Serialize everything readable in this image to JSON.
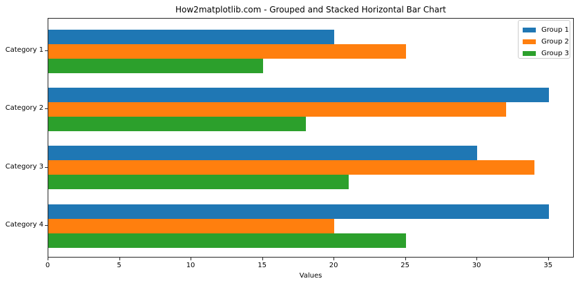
{
  "figure": {
    "background": "#ffffff"
  },
  "chart_data": {
    "type": "bar",
    "orientation": "horizontal",
    "title": "How2matplotlib.com - Grouped and Stacked Horizontal Bar Chart",
    "xlabel": "Values",
    "categories": [
      "Category 1",
      "Category 2",
      "Category 3",
      "Category 4"
    ],
    "series": [
      {
        "name": "Group 1",
        "color": "#1f77b4",
        "values": [
          20,
          35,
          30,
          35
        ]
      },
      {
        "name": "Group 2",
        "color": "#ff7f0e",
        "values": [
          25,
          32,
          34,
          20
        ]
      },
      {
        "name": "Group 3",
        "color": "#2ca02c",
        "values": [
          15,
          18,
          21,
          25
        ]
      }
    ],
    "xticks": [
      0,
      5,
      10,
      15,
      20,
      25,
      30,
      35
    ],
    "xlim": [
      0,
      36.8
    ],
    "grid": false,
    "legend": {
      "position": "upper right",
      "entries": [
        "Group 1",
        "Group 2",
        "Group 3"
      ]
    },
    "axis_color": "#262626",
    "text_color": "#000000"
  }
}
